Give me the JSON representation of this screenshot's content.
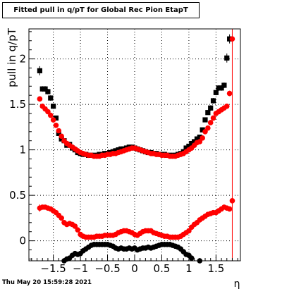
{
  "chart_data": {
    "type": "scatter",
    "title": "Fitted pull in q/pT for Global Rec Pion EtapT",
    "xlabel": "η",
    "ylabel": "pull in q/pT",
    "xlim": [
      -1.95,
      1.95
    ],
    "ylim": [
      -0.22,
      2.33
    ],
    "grid": true,
    "x_ticks": [
      -1.5,
      -1,
      -0.5,
      0,
      0.5,
      1,
      1.5
    ],
    "x_tick_labels": [
      "−1.5",
      "−1",
      "−0.5",
      "0",
      "0.5",
      "1",
      "1.5"
    ],
    "y_ticks": [
      0,
      0.5,
      1,
      1.5,
      2
    ],
    "y_tick_labels": [
      "0",
      "0.5",
      "1",
      "1.5",
      "2"
    ],
    "vertical_line_x": 1.8,
    "series": [
      {
        "marker": "square",
        "color": "#000000",
        "x": [
          -1.75,
          -1.7,
          -1.65,
          -1.6,
          -1.55,
          -1.5,
          -1.45,
          -1.4,
          -1.35,
          -1.3,
          -1.25,
          -1.2,
          -1.15,
          -1.1,
          -1.05,
          -1.0,
          -0.95,
          -0.9,
          -0.85,
          -0.8,
          -0.75,
          -0.7,
          -0.65,
          -0.6,
          -0.55,
          -0.5,
          -0.45,
          -0.4,
          -0.35,
          -0.3,
          -0.25,
          -0.2,
          -0.15,
          -0.1,
          -0.05,
          0.0,
          0.05,
          0.1,
          0.15,
          0.2,
          0.25,
          0.3,
          0.35,
          0.4,
          0.45,
          0.5,
          0.55,
          0.6,
          0.65,
          0.7,
          0.75,
          0.8,
          0.85,
          0.9,
          0.95,
          1.0,
          1.05,
          1.1,
          1.15,
          1.2,
          1.25,
          1.3,
          1.35,
          1.4,
          1.45,
          1.5,
          1.55,
          1.6,
          1.65,
          1.7,
          1.75
        ],
        "y": [
          1.87,
          1.67,
          1.67,
          1.64,
          1.57,
          1.48,
          1.35,
          1.18,
          1.12,
          1.1,
          1.05,
          1.06,
          1.02,
          1.0,
          0.97,
          0.96,
          0.95,
          0.95,
          0.94,
          0.94,
          0.94,
          0.94,
          0.95,
          0.95,
          0.96,
          0.96,
          0.97,
          0.98,
          0.99,
          1.0,
          1.01,
          1.01,
          1.02,
          1.03,
          1.03,
          1.02,
          1.01,
          1.0,
          0.99,
          0.98,
          0.97,
          0.97,
          0.96,
          0.96,
          0.95,
          0.95,
          0.95,
          0.94,
          0.94,
          0.94,
          0.94,
          0.95,
          0.96,
          0.98,
          1.02,
          1.04,
          1.07,
          1.09,
          1.12,
          1.14,
          1.22,
          1.33,
          1.41,
          1.46,
          1.54,
          1.63,
          1.68,
          1.68,
          1.71,
          2.01,
          2.22
        ],
        "errors": [
          0.05,
          0.03,
          0.03,
          0.03,
          0.03,
          0.03,
          0.02,
          0.02,
          0.02,
          0.02,
          0.02,
          0.02,
          0.02,
          0.02,
          0.02,
          0.02,
          0.02,
          0.02,
          0.02,
          0.02,
          0.02,
          0.02,
          0.02,
          0.02,
          0.02,
          0.02,
          0.02,
          0.02,
          0.02,
          0.02,
          0.02,
          0.02,
          0.02,
          0.02,
          0.02,
          0.02,
          0.02,
          0.02,
          0.02,
          0.02,
          0.02,
          0.02,
          0.02,
          0.02,
          0.02,
          0.02,
          0.02,
          0.02,
          0.02,
          0.02,
          0.02,
          0.02,
          0.02,
          0.02,
          0.02,
          0.02,
          0.02,
          0.02,
          0.02,
          0.02,
          0.02,
          0.02,
          0.02,
          0.03,
          0.03,
          0.03,
          0.03,
          0.03,
          0.03,
          0.05,
          0.05
        ]
      },
      {
        "marker": "circle",
        "color": "#ff0000",
        "x": [
          -1.75,
          -1.7,
          -1.65,
          -1.6,
          -1.55,
          -1.5,
          -1.45,
          -1.4,
          -1.35,
          -1.3,
          -1.25,
          -1.2,
          -1.15,
          -1.1,
          -1.05,
          -1.0,
          -0.95,
          -0.9,
          -0.85,
          -0.8,
          -0.75,
          -0.7,
          -0.65,
          -0.6,
          -0.55,
          -0.5,
          -0.45,
          -0.4,
          -0.35,
          -0.3,
          -0.25,
          -0.2,
          -0.15,
          -0.1,
          -0.05,
          0.0,
          0.05,
          0.1,
          0.15,
          0.2,
          0.25,
          0.3,
          0.35,
          0.4,
          0.45,
          0.5,
          0.55,
          0.6,
          0.65,
          0.7,
          0.75,
          0.8,
          0.85,
          0.9,
          0.95,
          1.0,
          1.05,
          1.1,
          1.15,
          1.2,
          1.25,
          1.3,
          1.35,
          1.4,
          1.45,
          1.5,
          1.55,
          1.6,
          1.65,
          1.7,
          1.75,
          1.8
        ],
        "y": [
          1.56,
          1.48,
          1.45,
          1.42,
          1.38,
          1.33,
          1.27,
          1.21,
          1.15,
          1.1,
          1.07,
          1.05,
          1.03,
          1.01,
          0.99,
          0.97,
          0.96,
          0.95,
          0.94,
          0.94,
          0.93,
          0.93,
          0.93,
          0.94,
          0.94,
          0.95,
          0.95,
          0.96,
          0.96,
          0.97,
          0.98,
          0.99,
          1.0,
          1.01,
          1.02,
          1.02,
          1.01,
          1.0,
          0.99,
          0.98,
          0.97,
          0.96,
          0.96,
          0.95,
          0.95,
          0.94,
          0.94,
          0.94,
          0.93,
          0.93,
          0.93,
          0.94,
          0.95,
          0.96,
          0.98,
          1.0,
          1.02,
          1.05,
          1.08,
          1.09,
          1.13,
          1.2,
          1.24,
          1.3,
          1.35,
          1.4,
          1.42,
          1.44,
          1.46,
          1.48,
          1.62,
          2.22
        ],
        "errors": [
          0.03,
          0.02,
          0.02,
          0.02,
          0.02,
          0.02,
          0.02,
          0.02,
          0.02,
          0.02,
          0.02,
          0.02,
          0.02,
          0.02,
          0.02,
          0.02,
          0.02,
          0.02,
          0.02,
          0.02,
          0.02,
          0.02,
          0.02,
          0.02,
          0.02,
          0.02,
          0.02,
          0.02,
          0.02,
          0.02,
          0.02,
          0.02,
          0.02,
          0.02,
          0.02,
          0.02,
          0.02,
          0.02,
          0.02,
          0.02,
          0.02,
          0.02,
          0.02,
          0.02,
          0.02,
          0.02,
          0.02,
          0.02,
          0.02,
          0.02,
          0.02,
          0.02,
          0.02,
          0.02,
          0.02,
          0.02,
          0.02,
          0.02,
          0.02,
          0.02,
          0.02,
          0.02,
          0.02,
          0.02,
          0.02,
          0.02,
          0.02,
          0.02,
          0.02,
          0.02,
          0.03,
          0.06
        ]
      },
      {
        "marker": "circle",
        "color": "#ff0000",
        "x": [
          -1.75,
          -1.7,
          -1.65,
          -1.6,
          -1.55,
          -1.5,
          -1.45,
          -1.4,
          -1.35,
          -1.3,
          -1.25,
          -1.2,
          -1.15,
          -1.1,
          -1.05,
          -1.0,
          -0.95,
          -0.9,
          -0.85,
          -0.8,
          -0.75,
          -0.7,
          -0.65,
          -0.6,
          -0.55,
          -0.5,
          -0.45,
          -0.4,
          -0.35,
          -0.3,
          -0.25,
          -0.2,
          -0.15,
          -0.1,
          -0.05,
          0.0,
          0.05,
          0.1,
          0.15,
          0.2,
          0.25,
          0.3,
          0.35,
          0.4,
          0.45,
          0.5,
          0.55,
          0.6,
          0.65,
          0.7,
          0.75,
          0.8,
          0.85,
          0.9,
          0.95,
          1.0,
          1.05,
          1.1,
          1.15,
          1.2,
          1.25,
          1.3,
          1.35,
          1.4,
          1.45,
          1.5,
          1.55,
          1.6,
          1.65,
          1.7,
          1.75,
          1.8
        ],
        "y": [
          0.36,
          0.37,
          0.37,
          0.36,
          0.35,
          0.33,
          0.31,
          0.28,
          0.25,
          0.2,
          0.18,
          0.19,
          0.18,
          0.16,
          0.12,
          0.07,
          0.05,
          0.04,
          0.04,
          0.04,
          0.04,
          0.05,
          0.05,
          0.05,
          0.06,
          0.06,
          0.06,
          0.06,
          0.07,
          0.09,
          0.1,
          0.11,
          0.11,
          0.1,
          0.09,
          0.07,
          0.06,
          0.08,
          0.1,
          0.11,
          0.11,
          0.11,
          0.09,
          0.08,
          0.07,
          0.06,
          0.05,
          0.05,
          0.04,
          0.04,
          0.04,
          0.04,
          0.05,
          0.07,
          0.09,
          0.11,
          0.15,
          0.18,
          0.2,
          0.23,
          0.25,
          0.27,
          0.29,
          0.3,
          0.31,
          0.31,
          0.33,
          0.35,
          0.37,
          0.36,
          0.35,
          0.44
        ],
        "errors": [
          0.04,
          0.02,
          0.02,
          0.02,
          0.02,
          0.02,
          0.02,
          0.02,
          0.02,
          0.02,
          0.02,
          0.02,
          0.02,
          0.02,
          0.02,
          0.02,
          0.02,
          0.02,
          0.02,
          0.02,
          0.02,
          0.02,
          0.02,
          0.02,
          0.02,
          0.02,
          0.02,
          0.02,
          0.02,
          0.02,
          0.02,
          0.02,
          0.02,
          0.02,
          0.02,
          0.02,
          0.02,
          0.02,
          0.02,
          0.02,
          0.02,
          0.02,
          0.02,
          0.02,
          0.02,
          0.02,
          0.02,
          0.02,
          0.02,
          0.02,
          0.02,
          0.02,
          0.02,
          0.02,
          0.02,
          0.02,
          0.02,
          0.02,
          0.02,
          0.02,
          0.02,
          0.02,
          0.02,
          0.02,
          0.02,
          0.02,
          0.02,
          0.02,
          0.02,
          0.02,
          0.02,
          0.04
        ]
      },
      {
        "marker": "circle",
        "color": "#000000",
        "x": [
          -1.3,
          -1.25,
          -1.2,
          -1.15,
          -1.1,
          -1.05,
          -1.0,
          -0.95,
          -0.9,
          -0.85,
          -0.8,
          -0.75,
          -0.7,
          -0.65,
          -0.6,
          -0.55,
          -0.5,
          -0.45,
          -0.4,
          -0.35,
          -0.3,
          -0.25,
          -0.2,
          -0.15,
          -0.1,
          -0.05,
          0.0,
          0.05,
          0.1,
          0.15,
          0.2,
          0.25,
          0.3,
          0.35,
          0.4,
          0.45,
          0.5,
          0.55,
          0.6,
          0.65,
          0.7,
          0.75,
          0.8,
          0.85,
          0.9,
          0.95,
          1.0,
          1.05,
          1.2
        ],
        "y": [
          -0.22,
          -0.2,
          -0.19,
          -0.16,
          -0.14,
          -0.15,
          -0.14,
          -0.11,
          -0.09,
          -0.07,
          -0.05,
          -0.04,
          -0.04,
          -0.04,
          -0.04,
          -0.04,
          -0.04,
          -0.05,
          -0.06,
          -0.08,
          -0.09,
          -0.08,
          -0.09,
          -0.09,
          -0.08,
          -0.09,
          -0.08,
          -0.1,
          -0.09,
          -0.08,
          -0.08,
          -0.07,
          -0.08,
          -0.07,
          -0.06,
          -0.05,
          -0.04,
          -0.04,
          -0.04,
          -0.04,
          -0.05,
          -0.06,
          -0.07,
          -0.09,
          -0.12,
          -0.15,
          -0.16,
          -0.19,
          -0.22
        ],
        "errors": [
          0.02,
          0.02,
          0.02,
          0.02,
          0.02,
          0.02,
          0.02,
          0.02,
          0.02,
          0.02,
          0.02,
          0.02,
          0.02,
          0.02,
          0.02,
          0.02,
          0.02,
          0.02,
          0.02,
          0.02,
          0.02,
          0.02,
          0.02,
          0.02,
          0.02,
          0.02,
          0.02,
          0.02,
          0.02,
          0.02,
          0.02,
          0.02,
          0.02,
          0.02,
          0.02,
          0.02,
          0.02,
          0.02,
          0.02,
          0.02,
          0.02,
          0.02,
          0.02,
          0.02,
          0.02,
          0.02,
          0.02,
          0.02,
          0.02
        ]
      }
    ]
  },
  "footer": {
    "timestamp": "Thu May 20 15:59:28 2021"
  }
}
